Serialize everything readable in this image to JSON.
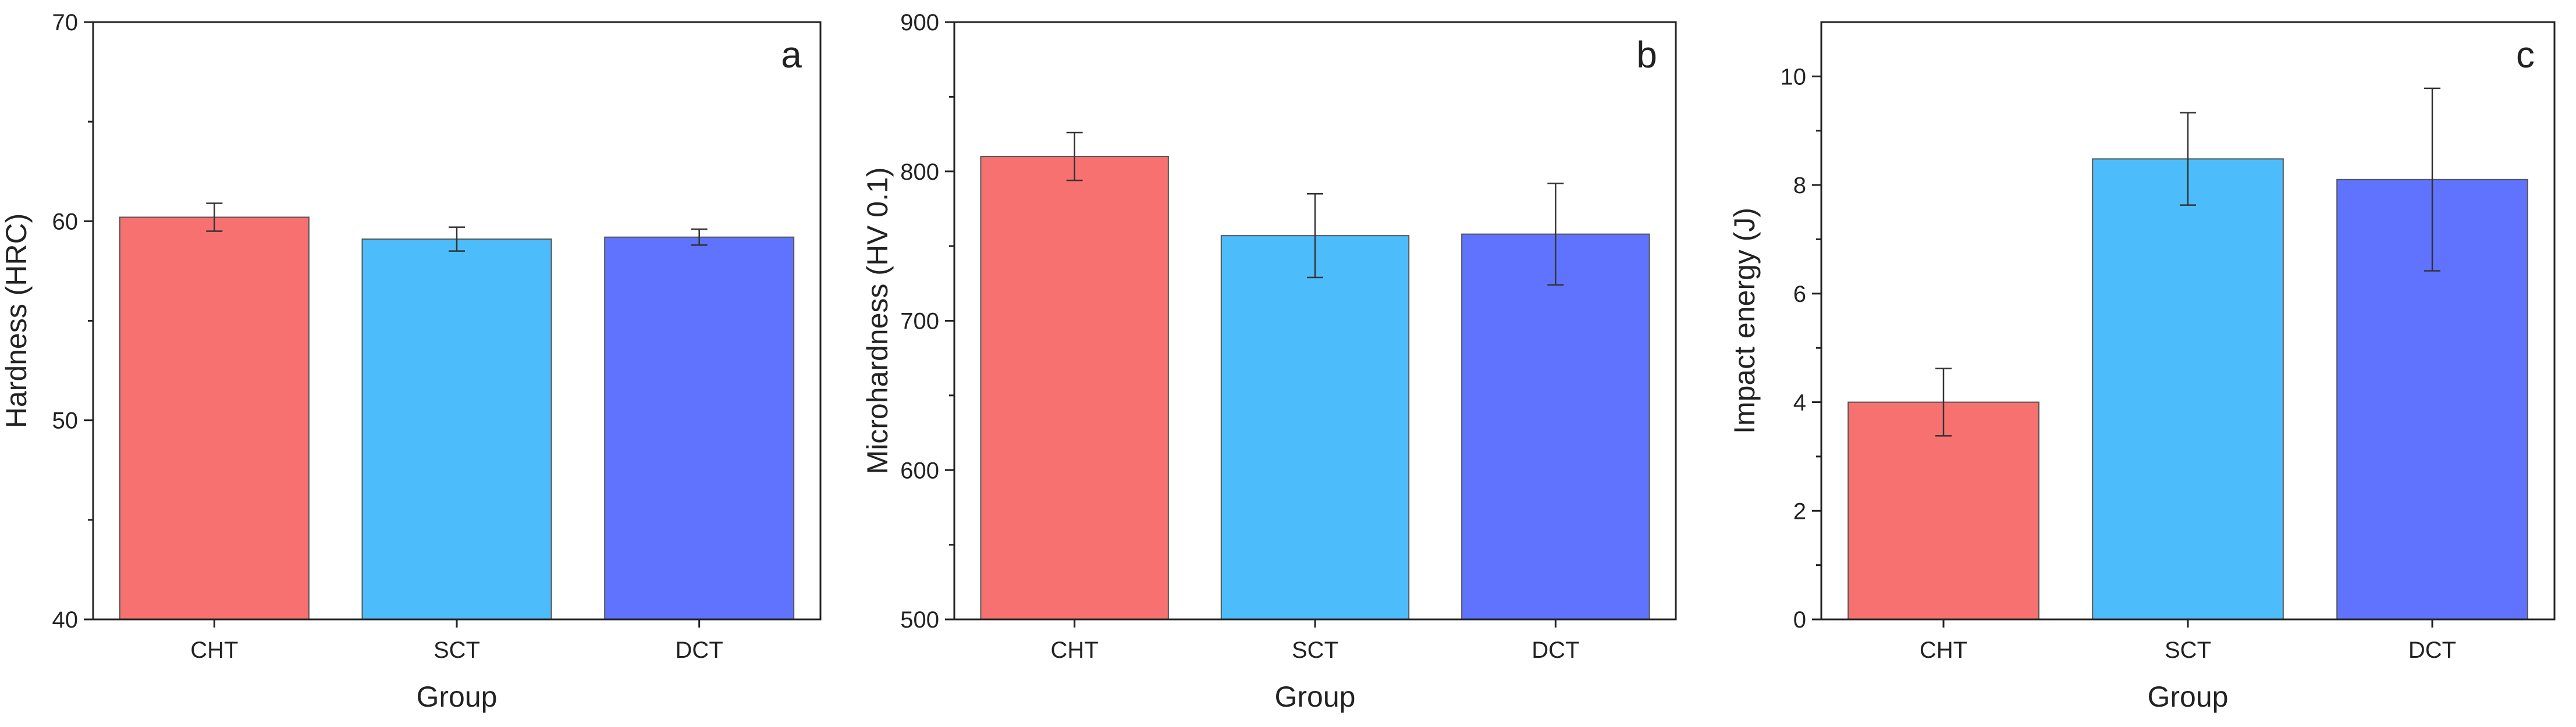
{
  "chart_data": [
    {
      "type": "bar",
      "panel": "a",
      "xlabel": "Group",
      "ylabel": "Hardness (HRC)",
      "categories": [
        "CHT",
        "SCT",
        "DCT"
      ],
      "values": [
        60.2,
        59.1,
        59.2
      ],
      "errors": [
        0.7,
        0.6,
        0.4
      ],
      "ylim": [
        40,
        70
      ],
      "yticks": [
        40,
        50,
        60,
        70
      ],
      "colors": [
        "#F87171",
        "#4DBCFB",
        "#5F73FE"
      ]
    },
    {
      "type": "bar",
      "panel": "b",
      "xlabel": "Group",
      "ylabel": "Microhardness (HV 0.1)",
      "categories": [
        "CHT",
        "SCT",
        "DCT"
      ],
      "values": [
        810,
        757,
        758
      ],
      "errors": [
        16,
        28,
        34
      ],
      "ylim": [
        500,
        900
      ],
      "yticks": [
        500,
        600,
        700,
        800,
        900
      ],
      "colors": [
        "#F87171",
        "#4DBCFB",
        "#5F73FE"
      ]
    },
    {
      "type": "bar",
      "panel": "c",
      "xlabel": "Group",
      "ylabel": "Impact energy (J)",
      "categories": [
        "CHT",
        "SCT",
        "DCT"
      ],
      "values": [
        4.0,
        8.48,
        8.1
      ],
      "errors": [
        0.62,
        0.85,
        1.68
      ],
      "ylim": [
        0,
        11
      ],
      "yticks": [
        0,
        2,
        4,
        6,
        8,
        10
      ],
      "colors": [
        "#F87171",
        "#4DBCFB",
        "#5F73FE"
      ]
    }
  ]
}
